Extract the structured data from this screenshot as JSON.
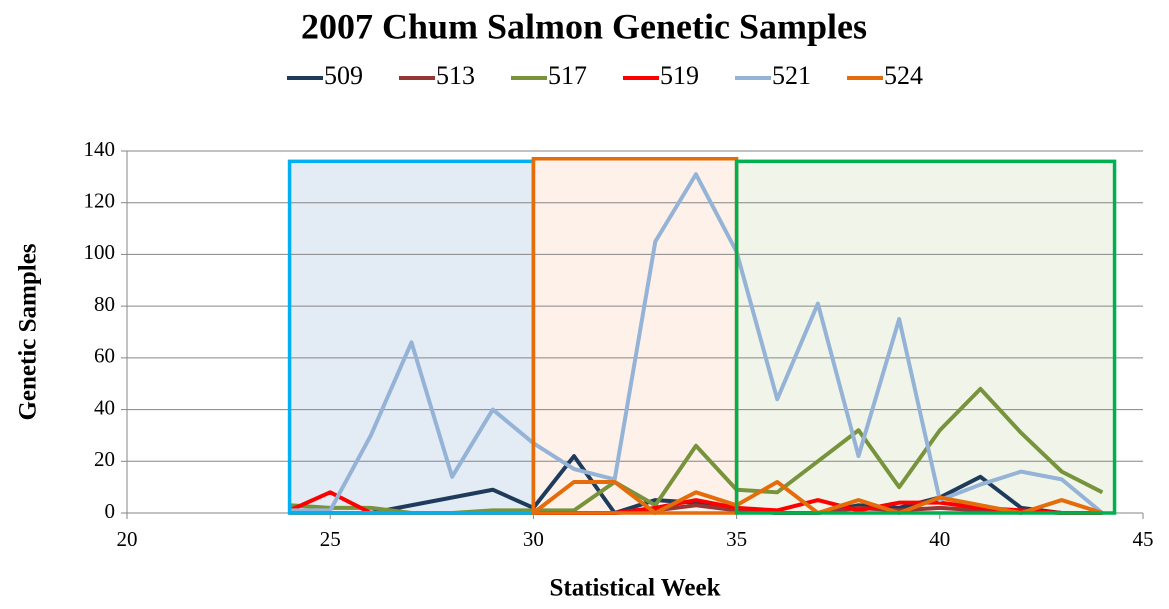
{
  "chart_data": {
    "type": "line",
    "title": "2007 Chum Salmon Genetic Samples",
    "x_label": "Statistical Week",
    "y_label": "Genetic Samples",
    "x": [
      24,
      25,
      26,
      27,
      28,
      29,
      30,
      31,
      32,
      33,
      34,
      35,
      36,
      37,
      38,
      39,
      40,
      41,
      42,
      43,
      44
    ],
    "series": [
      {
        "name": "509",
        "color": "#1f3b5c",
        "values": [
          0,
          0,
          0,
          3,
          6,
          9,
          2,
          22,
          0,
          5,
          4,
          2,
          0,
          0,
          3,
          2,
          6,
          14,
          2,
          0,
          0
        ]
      },
      {
        "name": "513",
        "color": "#953735",
        "values": [
          0,
          0,
          0,
          0,
          0,
          0,
          0,
          0,
          0,
          1,
          3,
          1,
          0,
          0,
          2,
          1,
          2,
          1,
          1,
          0,
          0
        ]
      },
      {
        "name": "517",
        "color": "#77933c",
        "values": [
          3,
          2,
          2,
          0,
          0,
          1,
          1,
          1,
          12,
          3,
          26,
          9,
          8,
          20,
          32,
          10,
          32,
          48,
          31,
          16,
          8
        ]
      },
      {
        "name": "519",
        "color": "#ff0000",
        "values": [
          1,
          8,
          0,
          0,
          0,
          0,
          0,
          0,
          0,
          2,
          5,
          2,
          1,
          5,
          1,
          4,
          4,
          2,
          1,
          0,
          0
        ]
      },
      {
        "name": "521",
        "color": "#95b3d7",
        "values": [
          1,
          1,
          30,
          66,
          14,
          40,
          27,
          17,
          13,
          105,
          131,
          101,
          44,
          81,
          22,
          75,
          5,
          11,
          16,
          13,
          0
        ]
      },
      {
        "name": "524",
        "color": "#e46c0a",
        "values": [
          0,
          0,
          0,
          0,
          0,
          0,
          0,
          12,
          12,
          0,
          8,
          3,
          12,
          0,
          5,
          0,
          6,
          3,
          0,
          5,
          0
        ]
      }
    ],
    "shaded_spans": [
      {
        "x": [
          24,
          30
        ],
        "top": 136,
        "color": "#00b0f0",
        "fill": "#dce6f2"
      },
      {
        "x": [
          30,
          35
        ],
        "top": 137,
        "color": "#e46c0a",
        "fill": "#fdeee4"
      },
      {
        "x": [
          35,
          44.3
        ],
        "top": 136,
        "color": "#00b050",
        "fill": "#eef3e4"
      }
    ],
    "xlim": [
      20,
      45
    ],
    "xticks": [
      20,
      25,
      30,
      35,
      40,
      45
    ],
    "ylim": [
      0,
      140
    ],
    "yticks": [
      0,
      20,
      40,
      60,
      80,
      100,
      120,
      140
    ],
    "grid": true
  }
}
